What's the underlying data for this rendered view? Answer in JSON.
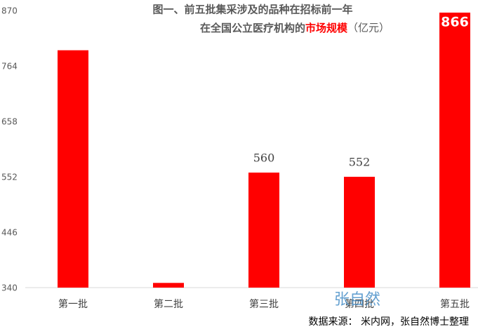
{
  "chart_data": {
    "type": "bar",
    "title": [
      "图一、前五批集采涉及的品种在招标前一年",
      "在全国公立医疗机构的"
    ],
    "title_highlight": "市场规模",
    "title_suffix": "（亿元）",
    "categories": [
      "第一批",
      "第二批",
      "第三批",
      "第四批",
      "第五批"
    ],
    "values": [
      794,
      349,
      560,
      552,
      866
    ],
    "show_value_labels": [
      false,
      false,
      true,
      true,
      true
    ],
    "color": "#ff0000",
    "ylim": [
      340,
      870
    ],
    "yticks": [
      340,
      446,
      552,
      658,
      764,
      870
    ],
    "grid": false,
    "watermark": "张自然",
    "source": "数据来源：  米内网，张自然博士整理"
  }
}
